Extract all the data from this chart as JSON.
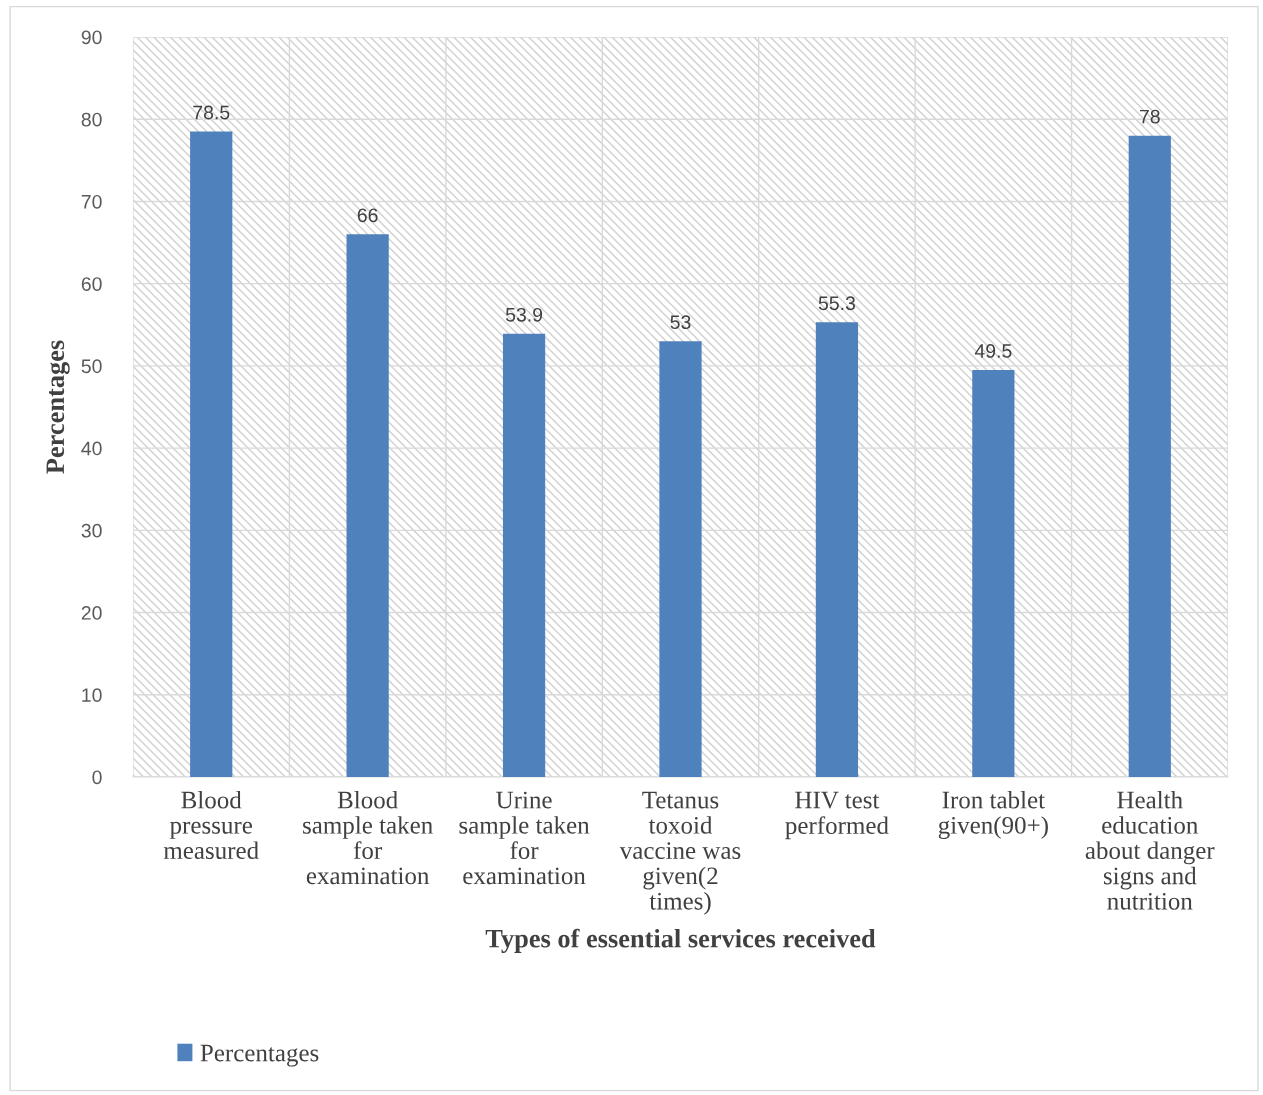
{
  "chart_data": {
    "type": "bar",
    "xlabel": "Types of essential services received",
    "ylabel": "Percentages",
    "categories": [
      "Blood\npressure\nmeasured",
      "Blood\nsample taken\nfor\nexamination",
      "Urine\nsample taken\nfor\nexamination",
      "Tetanus\ntoxoid\nvaccine was\ngiven(2\ntimes)",
      "HIV test\nperformed",
      "Iron tablet\ngiven(90+)",
      "Health\neducation\nabout danger\nsigns and\nnutrition"
    ],
    "series": [
      {
        "name": "Percentages",
        "color": "#4f81bd",
        "values": [
          78.5,
          66,
          53.9,
          53,
          55.3,
          49.5,
          78
        ]
      }
    ],
    "ylim": [
      0,
      90
    ],
    "yticks": [
      0,
      10,
      20,
      30,
      40,
      50,
      60,
      70,
      80,
      90
    ],
    "grid": true,
    "data_labels": true,
    "legend": "bottom left"
  }
}
